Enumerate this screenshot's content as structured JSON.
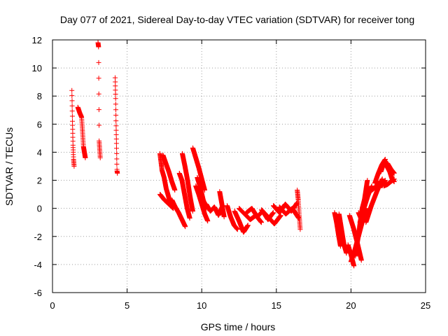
{
  "chart_data": {
    "type": "scatter",
    "title": "Day 077 of 2021, Sidereal Day-to-day VTEC variation (SDTVAR) for receiver tong",
    "xlabel": "GPS time / hours",
    "ylabel": "SDTVAR / TECUs",
    "xlim": [
      0,
      25
    ],
    "ylim": [
      -6,
      12
    ],
    "xticks": [
      0,
      5,
      10,
      15,
      20,
      25
    ],
    "yticks": [
      -6,
      -4,
      -2,
      0,
      2,
      4,
      6,
      8,
      10,
      12
    ],
    "grid": true,
    "marker": "+",
    "series_color": "#ff0000",
    "segments": [
      {
        "x0": 1.3,
        "x1": 1.45,
        "y": [
          8.4,
          6.2,
          4.5,
          3.5,
          3.0
        ]
      },
      {
        "x0": 1.7,
        "x1": 2.2,
        "y": [
          7.2,
          6.8,
          6.5,
          4.4,
          3.6
        ]
      },
      {
        "x0": 3.05,
        "x1": 3.2,
        "y": [
          11.8,
          11.5,
          4.8,
          4.2,
          3.6
        ]
      },
      {
        "x0": 4.2,
        "x1": 4.35,
        "y": [
          9.3,
          7.9,
          6.0,
          4.5,
          2.7,
          2.5
        ]
      },
      {
        "x0": 7.2,
        "x1": 7.9,
        "y": [
          3.9,
          2.7,
          2.2,
          1.4,
          0.9,
          0.3
        ]
      },
      {
        "x0": 7.2,
        "x1": 8.1,
        "y": [
          1.0,
          0.6,
          0.3,
          0.0
        ]
      },
      {
        "x0": 7.4,
        "x1": 8.2,
        "y": [
          3.8,
          3.2,
          2.6,
          1.9,
          1.3
        ]
      },
      {
        "x0": 8.0,
        "x1": 8.9,
        "y": [
          0.6,
          0.1,
          -0.3,
          -0.8,
          -1.3
        ]
      },
      {
        "x0": 8.5,
        "x1": 9.2,
        "y": [
          2.5,
          2.0,
          1.0,
          0.0,
          -0.7
        ]
      },
      {
        "x0": 8.7,
        "x1": 9.4,
        "y": [
          3.9,
          3.0,
          2.0,
          0.8,
          -0.2
        ]
      },
      {
        "x0": 9.4,
        "x1": 10.2,
        "y": [
          4.3,
          3.6,
          2.9,
          2.1,
          1.3
        ]
      },
      {
        "x0": 9.6,
        "x1": 10.4,
        "y": [
          1.6,
          1.0,
          0.3,
          -0.4,
          -0.9
        ]
      },
      {
        "x0": 9.7,
        "x1": 10.3,
        "y": [
          2.2,
          1.5,
          0.6,
          0.0
        ]
      },
      {
        "x0": 10.3,
        "x1": 11.4,
        "y": [
          0.3,
          -0.2,
          0.1,
          -0.5,
          0.2
        ]
      },
      {
        "x0": 11.2,
        "x1": 11.5,
        "y": [
          1.2,
          0.6,
          0.0,
          -0.6
        ]
      },
      {
        "x0": 11.7,
        "x1": 12.4,
        "y": [
          0.2,
          -0.6,
          -1.2,
          -1.5
        ]
      },
      {
        "x0": 12.2,
        "x1": 13.1,
        "y": [
          -0.2,
          -0.9,
          -1.7,
          -1.2
        ]
      },
      {
        "x0": 12.5,
        "x1": 14.0,
        "y": [
          0.0,
          -0.4,
          -0.8,
          -0.5,
          -1.0
        ]
      },
      {
        "x0": 13.0,
        "x1": 14.8,
        "y": [
          -0.3,
          0.0,
          -0.6,
          -0.2,
          -0.8,
          -0.3
        ]
      },
      {
        "x0": 14.0,
        "x1": 15.3,
        "y": [
          -0.1,
          -0.6,
          -1.1,
          -0.5
        ]
      },
      {
        "x0": 14.8,
        "x1": 16.4,
        "y": [
          0.2,
          -0.3,
          0.3,
          -0.2,
          0.4
        ]
      },
      {
        "x0": 15.2,
        "x1": 16.5,
        "y": [
          0.1,
          -0.4,
          0.0,
          -0.7
        ]
      },
      {
        "x0": 16.4,
        "x1": 16.6,
        "y": [
          1.3,
          0.6,
          -0.5,
          -1.5
        ]
      },
      {
        "x0": 18.9,
        "x1": 19.3,
        "y": [
          -0.3,
          -1.0,
          -1.9,
          -2.7
        ]
      },
      {
        "x0": 19.2,
        "x1": 19.7,
        "y": [
          -0.4,
          -1.5,
          -2.6,
          -3.2
        ]
      },
      {
        "x0": 19.8,
        "x1": 20.2,
        "y": [
          -2.6,
          -3.3,
          -4.1
        ]
      },
      {
        "x0": 19.9,
        "x1": 20.7,
        "y": [
          -0.5,
          -1.4,
          -2.5,
          -3.7
        ]
      },
      {
        "x0": 20.0,
        "x1": 21.0,
        "y": [
          -3.8,
          -3.0,
          -2.0,
          -1.0,
          0.0
        ]
      },
      {
        "x0": 20.3,
        "x1": 21.2,
        "y": [
          -3.4,
          -1.7,
          0.0,
          0.9,
          1.4
        ]
      },
      {
        "x0": 20.6,
        "x1": 21.4,
        "y": [
          -1.0,
          0.0,
          0.9,
          1.6
        ]
      },
      {
        "x0": 20.5,
        "x1": 21.1,
        "y": [
          -0.3,
          -0.8,
          0.6,
          2.0
        ]
      },
      {
        "x0": 21.0,
        "x1": 22.1,
        "y": [
          -1.0,
          0.2,
          1.2,
          2.1
        ]
      },
      {
        "x0": 21.4,
        "x1": 22.3,
        "y": [
          1.3,
          1.5,
          1.8,
          1.6,
          2.0
        ]
      },
      {
        "x0": 21.6,
        "x1": 22.3,
        "y": [
          1.8,
          2.5,
          3.1,
          3.5
        ]
      },
      {
        "x0": 22.0,
        "x1": 22.9,
        "y": [
          2.6,
          3.3,
          3.2,
          2.8,
          2.5
        ]
      },
      {
        "x0": 22.3,
        "x1": 22.9,
        "y": [
          3.3,
          2.9,
          2.6,
          2.1,
          1.9
        ]
      },
      {
        "x0": 22.2,
        "x1": 22.9,
        "y": [
          1.6,
          1.7,
          1.9,
          2.1
        ]
      }
    ]
  }
}
